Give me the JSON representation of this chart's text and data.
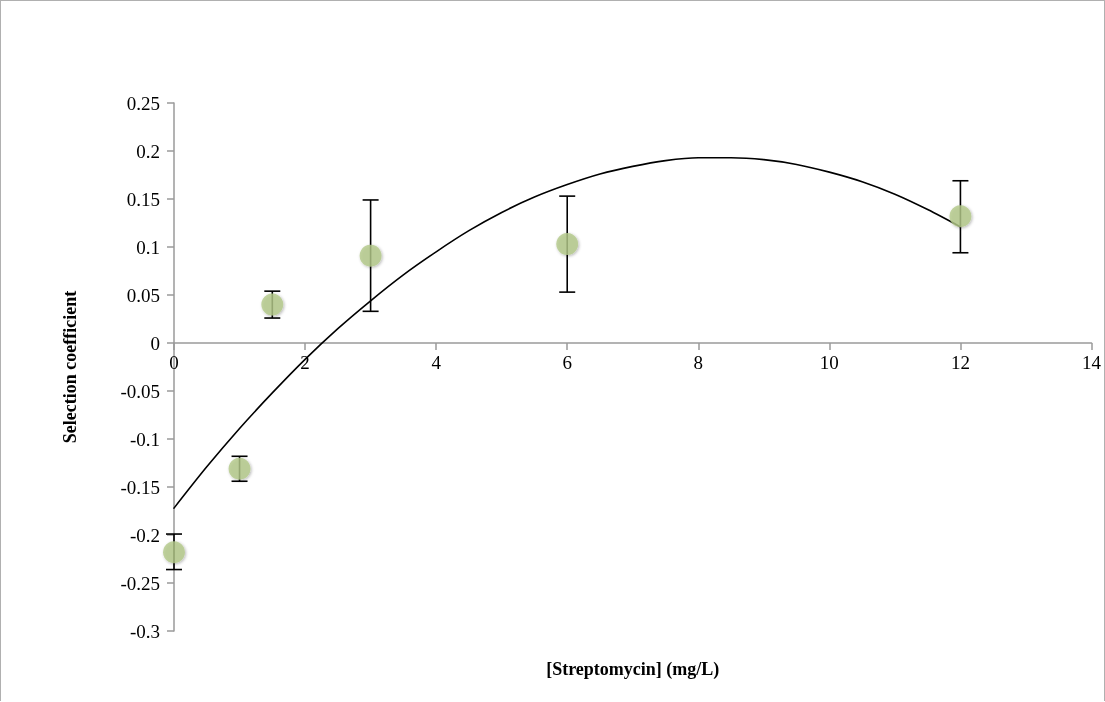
{
  "chart_data": {
    "type": "scatter",
    "xlabel": "[Streptomycin] (mg/L)",
    "ylabel": "Selection coefficient",
    "xlim": [
      0,
      14
    ],
    "xticks": [
      0,
      2,
      4,
      6,
      8,
      10,
      12,
      14
    ],
    "ylim": [
      -0.3,
      0.25
    ],
    "yticks": [
      -0.3,
      -0.25,
      -0.2,
      -0.15,
      -0.1,
      -0.05,
      0,
      0.05,
      0.1,
      0.15,
      0.2,
      0.25
    ],
    "series": [
      {
        "color": "#b3c98a",
        "marker": "circle",
        "x": [
          0,
          1,
          1.5,
          3,
          6,
          12
        ],
        "values": [
          -0.218,
          -0.131,
          0.04,
          0.091,
          0.103,
          0.132
        ],
        "errors": [
          [
            -0.236,
            -0.199
          ],
          [
            -0.144,
            -0.118
          ],
          [
            0.026,
            0.054
          ],
          [
            0.033,
            0.149
          ],
          [
            0.053,
            0.153
          ],
          [
            0.094,
            0.169
          ]
        ]
      },
      {
        "type": "line",
        "color": "#000000",
        "marker": "none",
        "line_style": "solid",
        "x": [
          0,
          0.5,
          1,
          1.5,
          2,
          2.5,
          3,
          3.5,
          4,
          4.5,
          5,
          5.5,
          6,
          6.5,
          7,
          7.5,
          8,
          8.5,
          9,
          9.5,
          10,
          10.5,
          11,
          11.5,
          12
        ],
        "values": [
          -0.172,
          -0.129,
          -0.089,
          -0.052,
          -0.017,
          0.015,
          0.044,
          0.071,
          0.095,
          0.117,
          0.136,
          0.152,
          0.165,
          0.176,
          0.184,
          0.19,
          0.193,
          0.193,
          0.191,
          0.186,
          0.178,
          0.168,
          0.155,
          0.139,
          0.121
        ]
      }
    ]
  }
}
